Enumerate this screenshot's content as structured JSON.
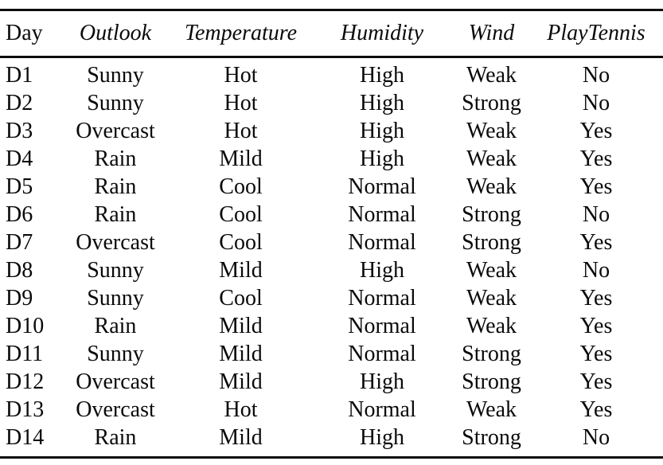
{
  "page": {
    "background_color": "#ffffff",
    "text_color": "#0a0a0a",
    "rule_color": "#0d0d0d"
  },
  "table": {
    "columns": [
      "Day",
      "Outlook",
      "Temperature",
      "Humidity",
      "Wind",
      "PlayTennis"
    ],
    "rows": [
      [
        "D1",
        "Sunny",
        "Hot",
        "High",
        "Weak",
        "No"
      ],
      [
        "D2",
        "Sunny",
        "Hot",
        "High",
        "Strong",
        "No"
      ],
      [
        "D3",
        "Overcast",
        "Hot",
        "High",
        "Weak",
        "Yes"
      ],
      [
        "D4",
        "Rain",
        "Mild",
        "High",
        "Weak",
        "Yes"
      ],
      [
        "D5",
        "Rain",
        "Cool",
        "Normal",
        "Weak",
        "Yes"
      ],
      [
        "D6",
        "Rain",
        "Cool",
        "Normal",
        "Strong",
        "No"
      ],
      [
        "D7",
        "Overcast",
        "Cool",
        "Normal",
        "Strong",
        "Yes"
      ],
      [
        "D8",
        "Sunny",
        "Mild",
        "High",
        "Weak",
        "No"
      ],
      [
        "D9",
        "Sunny",
        "Cool",
        "Normal",
        "Weak",
        "Yes"
      ],
      [
        "D10",
        "Rain",
        "Mild",
        "Normal",
        "Weak",
        "Yes"
      ],
      [
        "D11",
        "Sunny",
        "Mild",
        "Normal",
        "Strong",
        "Yes"
      ],
      [
        "D12",
        "Overcast",
        "Mild",
        "High",
        "Strong",
        "Yes"
      ],
      [
        "D13",
        "Overcast",
        "Hot",
        "Normal",
        "Weak",
        "Yes"
      ],
      [
        "D14",
        "Rain",
        "Mild",
        "High",
        "Strong",
        "No"
      ]
    ]
  }
}
